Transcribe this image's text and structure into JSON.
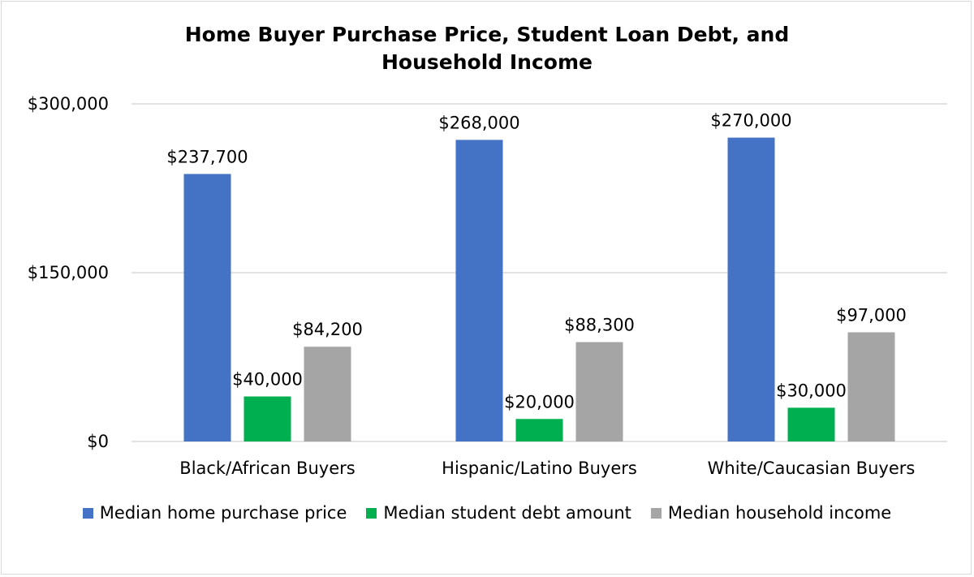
{
  "chart_data": {
    "type": "bar",
    "title_lines": [
      "Home Buyer Purchase Price, Student Loan Debt, and",
      "Household Income"
    ],
    "categories": [
      "Black/African Buyers",
      "Hispanic/Latino Buyers",
      "White/Caucasian Buyers"
    ],
    "series": [
      {
        "name": "Median home purchase price",
        "color": "#4472c4",
        "values": [
          237700,
          268000,
          270000
        ],
        "labels": [
          "$237,700",
          "$268,000",
          "$270,000"
        ]
      },
      {
        "name": "Median student debt amount",
        "color": "#00b050",
        "values": [
          40000,
          20000,
          30000
        ],
        "labels": [
          "$40,000",
          "$20,000",
          "$30,000"
        ]
      },
      {
        "name": "Median household income",
        "color": "#a5a5a5",
        "values": [
          84200,
          88300,
          97000
        ],
        "labels": [
          "$84,200",
          "$88,300",
          "$97,000"
        ]
      }
    ],
    "yticks": [
      0,
      150000,
      300000
    ],
    "ytick_labels": [
      "$0",
      "$150,000",
      "$300,000"
    ],
    "ylim": [
      0,
      300000
    ],
    "grid": true,
    "legend_position": "bottom"
  }
}
